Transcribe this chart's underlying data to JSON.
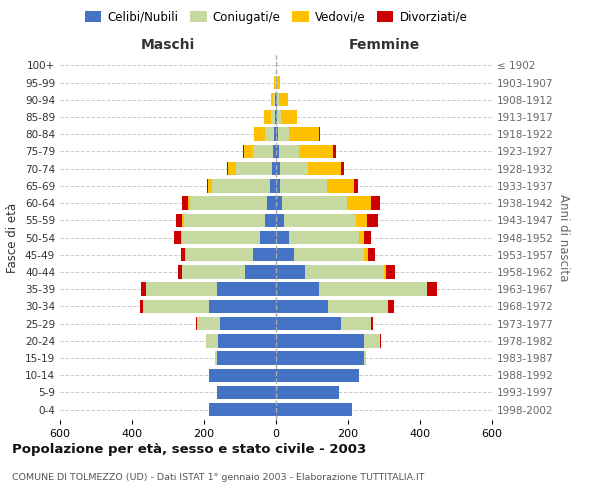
{
  "age_groups": [
    "0-4",
    "5-9",
    "10-14",
    "15-19",
    "20-24",
    "25-29",
    "30-34",
    "35-39",
    "40-44",
    "45-49",
    "50-54",
    "55-59",
    "60-64",
    "65-69",
    "70-74",
    "75-79",
    "80-84",
    "85-89",
    "90-94",
    "95-99",
    "100+"
  ],
  "birth_years": [
    "1998-2002",
    "1993-1997",
    "1988-1992",
    "1983-1987",
    "1978-1982",
    "1973-1977",
    "1968-1972",
    "1963-1967",
    "1958-1962",
    "1953-1957",
    "1948-1952",
    "1943-1947",
    "1938-1942",
    "1933-1937",
    "1928-1932",
    "1923-1927",
    "1918-1922",
    "1913-1917",
    "1908-1912",
    "1903-1907",
    "≤ 1902"
  ],
  "colors": {
    "celibi": "#4472c4",
    "coniugati": "#c5d9a0",
    "vedovi": "#ffc000",
    "divorziati": "#cc0000"
  },
  "males": {
    "celibi": [
      185,
      165,
      185,
      165,
      160,
      155,
      185,
      165,
      85,
      65,
      45,
      30,
      25,
      18,
      12,
      8,
      5,
      3,
      2,
      0,
      0
    ],
    "coniugati": [
      0,
      0,
      0,
      5,
      35,
      65,
      185,
      195,
      175,
      185,
      215,
      225,
      215,
      160,
      100,
      55,
      25,
      10,
      5,
      2,
      0
    ],
    "vedovi": [
      0,
      0,
      0,
      0,
      0,
      0,
      0,
      0,
      2,
      2,
      5,
      5,
      5,
      10,
      20,
      25,
      30,
      20,
      8,
      3,
      0
    ],
    "divorziati": [
      0,
      0,
      0,
      0,
      0,
      3,
      8,
      15,
      10,
      12,
      18,
      18,
      15,
      5,
      5,
      5,
      2,
      0,
      0,
      0,
      0
    ]
  },
  "females": {
    "celibi": [
      210,
      175,
      230,
      245,
      245,
      180,
      145,
      120,
      80,
      50,
      35,
      22,
      18,
      12,
      10,
      8,
      5,
      3,
      2,
      0,
      0
    ],
    "coniugati": [
      0,
      0,
      0,
      5,
      45,
      85,
      165,
      300,
      220,
      195,
      195,
      200,
      180,
      130,
      80,
      55,
      30,
      10,
      5,
      2,
      0
    ],
    "vedovi": [
      0,
      0,
      0,
      0,
      0,
      0,
      0,
      0,
      5,
      10,
      15,
      30,
      65,
      75,
      90,
      95,
      85,
      45,
      25,
      8,
      0
    ],
    "divorziati": [
      0,
      0,
      0,
      0,
      2,
      5,
      18,
      28,
      25,
      20,
      20,
      30,
      25,
      10,
      10,
      8,
      3,
      0,
      0,
      0,
      0
    ]
  },
  "xlim": 600,
  "title": "Popolazione per età, sesso e stato civile - 2003",
  "subtitle": "COMUNE DI TOLMEZZO (UD) - Dati ISTAT 1° gennaio 2003 - Elaborazione TUTTITALIA.IT",
  "ylabel_left": "Fasce di età",
  "ylabel_right": "Anni di nascita",
  "xlabel_left": "Maschi",
  "xlabel_right": "Femmine"
}
